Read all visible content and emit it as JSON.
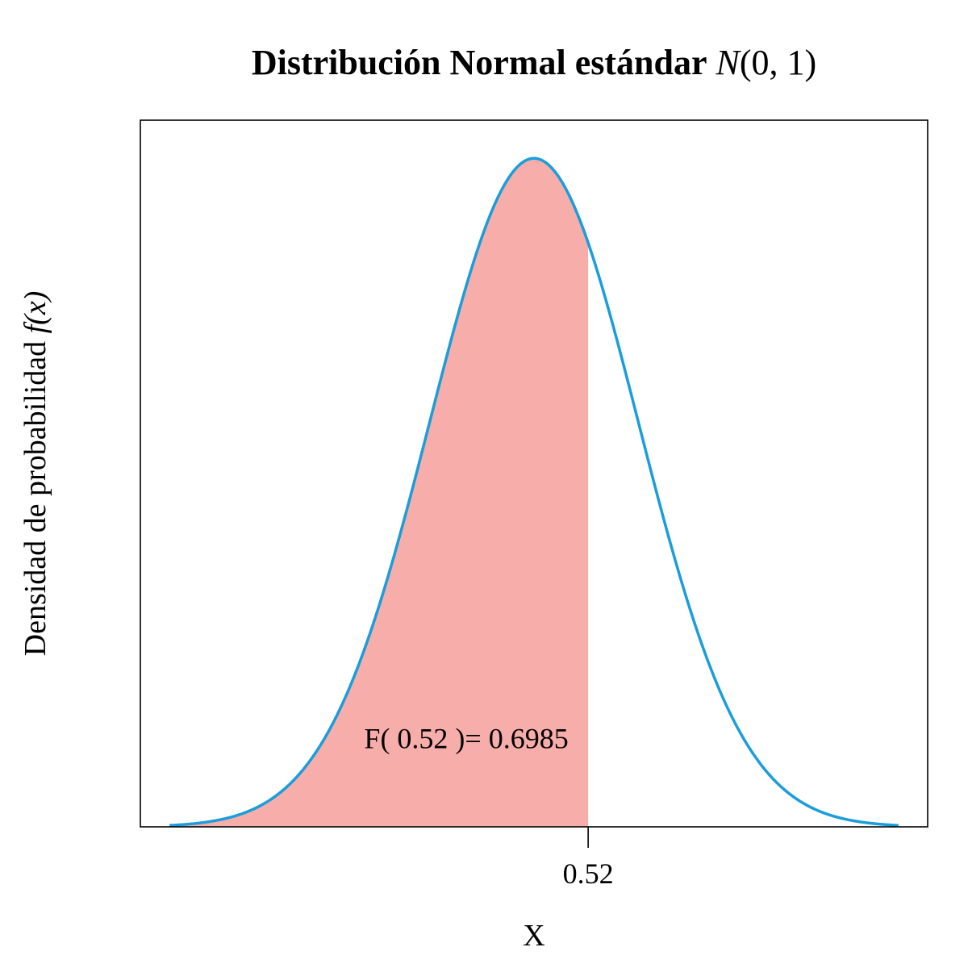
{
  "chart_data": {
    "type": "area",
    "title": {
      "text": "Distribución Normal estándar",
      "math_symbol": "N",
      "math_args": "(0, 1)"
    },
    "xlabel": "X",
    "ylabel": {
      "text": "Densidad de probabilidad",
      "math": "f(x)"
    },
    "distribution": {
      "name": "normal",
      "mean": 0,
      "sd": 1
    },
    "x_range": [
      -3.5,
      3.5
    ],
    "xlim": [
      -3.78,
      3.78
    ],
    "ylim": [
      0,
      0.4217
    ],
    "shaded_region": {
      "from": -3.5,
      "to": 0.52
    },
    "x_ticks": [
      {
        "value": 0.52,
        "label": "0.52"
      }
    ],
    "annotation": {
      "text": "F( 0.52 )= 0.6985",
      "x": -0.65,
      "y": 0.047
    },
    "grid": false,
    "legend": "none",
    "colors": {
      "curve": "#1a9ddb",
      "fill": "#f7aeaa",
      "axis": "#000000",
      "text": "#000000"
    }
  }
}
